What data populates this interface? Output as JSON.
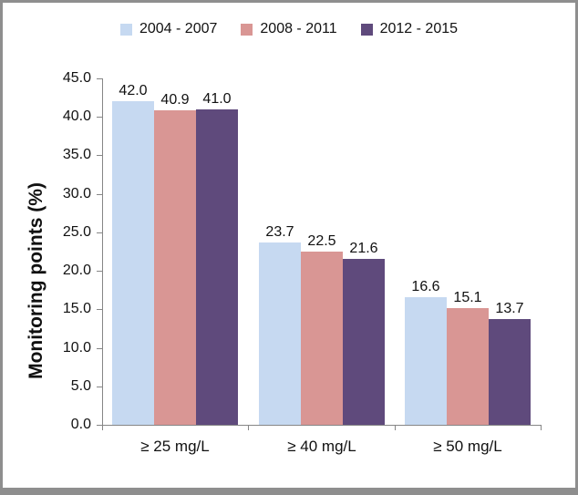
{
  "chart_data": {
    "type": "bar",
    "title": "",
    "categories": [
      "≥ 25 mg/L",
      "≥ 40 mg/L",
      "≥ 50 mg/L"
    ],
    "series": [
      {
        "name": "2004 - 2007",
        "color": "#c6d9f1",
        "values": [
          42.0,
          23.7,
          16.6
        ]
      },
      {
        "name": "2008 - 2011",
        "color": "#d99694",
        "values": [
          40.9,
          22.5,
          15.1
        ]
      },
      {
        "name": "2012 - 2015",
        "color": "#5f4a7c",
        "values": [
          41.0,
          21.6,
          13.7
        ]
      }
    ],
    "xlabel": "",
    "ylabel": "Monitoring points (%)",
    "ylim": [
      0,
      45
    ],
    "ytick_step": 5,
    "ytick_decimals": 1,
    "data_label_decimals": 1,
    "legend_position": "top",
    "grid": false,
    "colors": {
      "axis": "#868686",
      "text": "#111111",
      "frame_border": "#8e8e8e",
      "background": "#ffffff"
    }
  }
}
